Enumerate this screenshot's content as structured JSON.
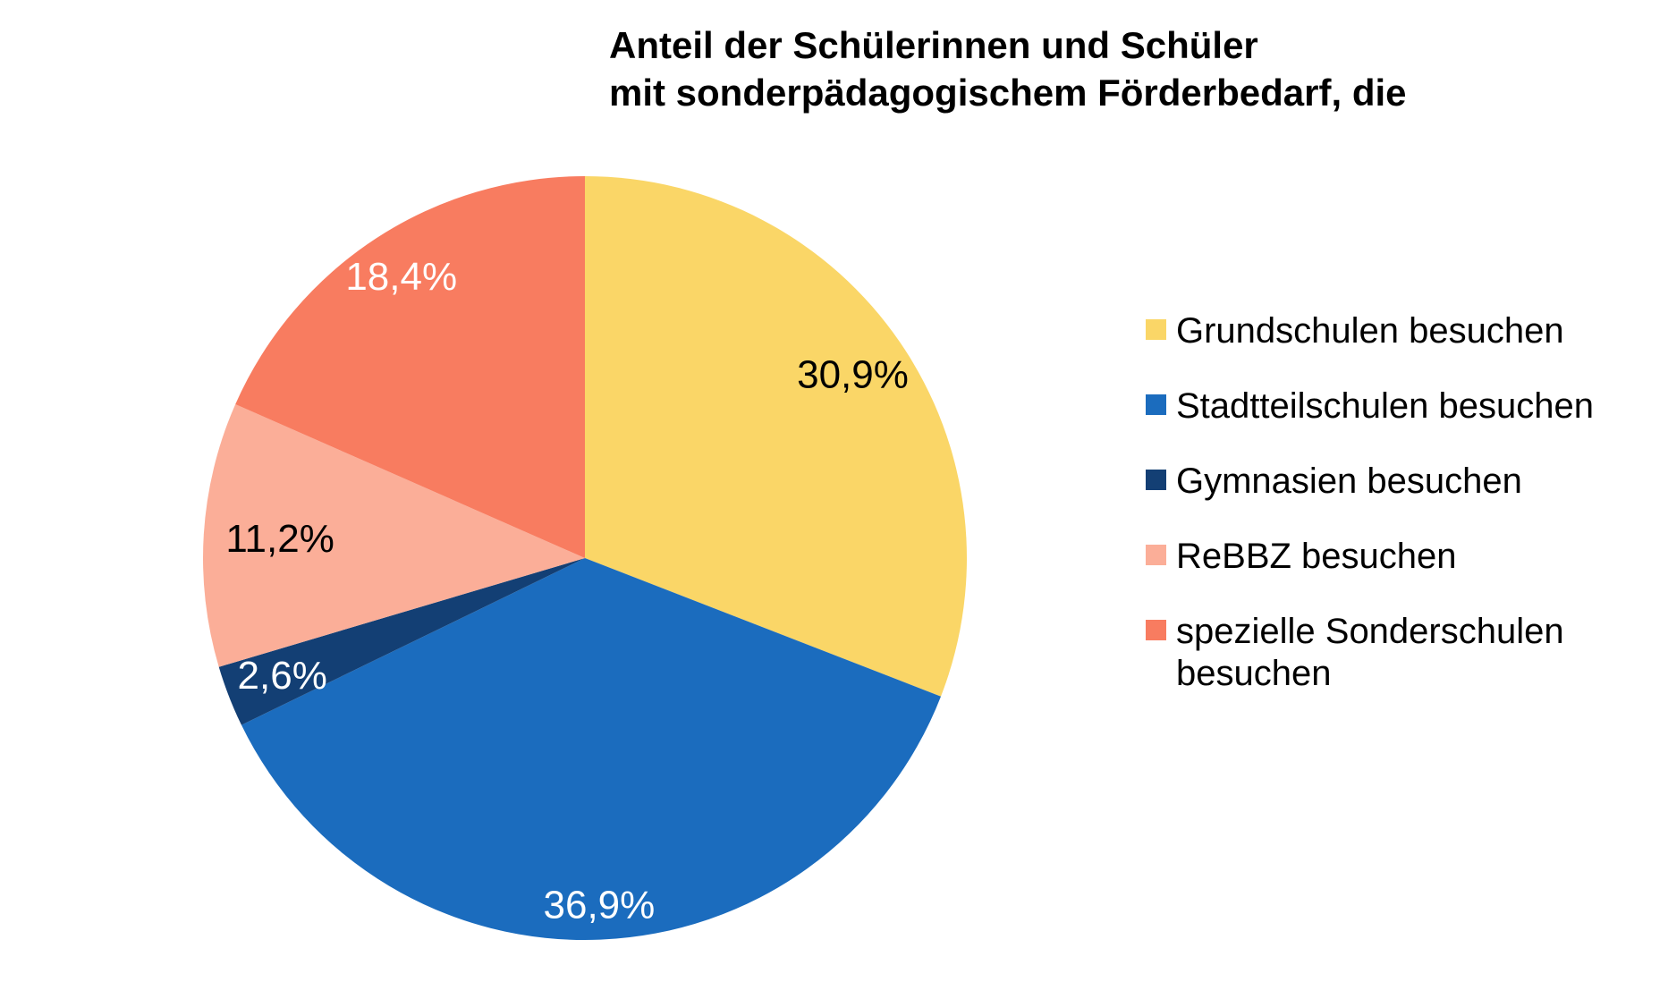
{
  "title": {
    "line1": "Anteil der Schülerinnen und Schüler",
    "line2": "mit sonderpädagogischem Förderbedarf, die"
  },
  "chart_data": {
    "type": "pie",
    "title": "Anteil der Schülerinnen und Schüler mit sonderpädagogischem Förderbedarf, die",
    "value_format": "german-decimal-percent",
    "slices": [
      {
        "label": "Grundschulen besuchen",
        "value": 30.9,
        "display": "30,9%",
        "color": "#FAD667",
        "label_color": "#000000"
      },
      {
        "label": "Stadtteilschulen besuchen",
        "value": 36.9,
        "display": "36,9%",
        "color": "#1B6CBE",
        "label_color": "#FFFFFF"
      },
      {
        "label": "Gymnasien besuchen",
        "value": 2.6,
        "display": "2,6%",
        "color": "#133F74",
        "label_color": "#FFFFFF"
      },
      {
        "label": "ReBBZ besuchen",
        "value": 11.2,
        "display": "11,2%",
        "color": "#FBAE98",
        "label_color": "#000000"
      },
      {
        "label": "spezielle Sonderschulen besuchen",
        "value": 18.4,
        "display": "18,4%",
        "color": "#F87C60",
        "label_color": "#FFFFFF"
      }
    ],
    "layout": {
      "start_angle_deg": 0,
      "direction": "clockwise",
      "center": [
        654,
        624
      ],
      "radius": 427,
      "label_radius_fractions": [
        0.85,
        0.91,
        0.85,
        0.8,
        0.88
      ],
      "legend_position": "right",
      "grid": false
    }
  }
}
